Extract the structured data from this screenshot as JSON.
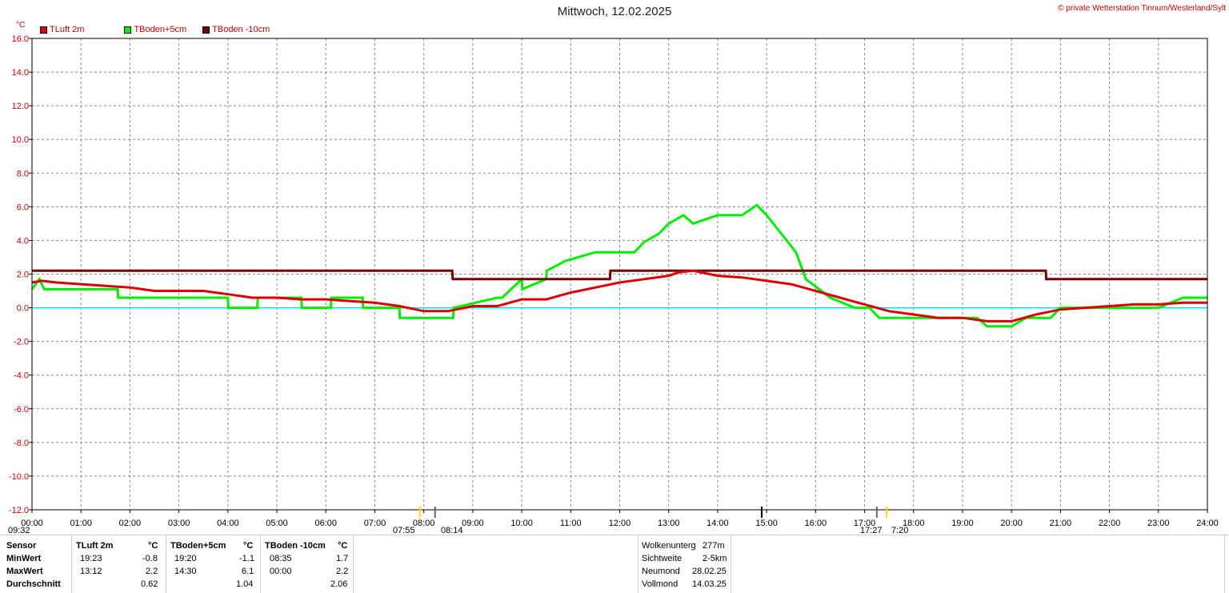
{
  "title": "Mittwoch, 12.02.2025",
  "copyright": "© private Wetterstation Tinnum/Westerland/Sylt",
  "unit": "°C",
  "legend": [
    {
      "label": "TLuft 2m",
      "color": "#dd0000"
    },
    {
      "label": "TBoden+5cm",
      "color": "#00ee00"
    },
    {
      "label": "TBoden -10cm",
      "color": "#7a0000"
    }
  ],
  "sun": {
    "daylight": "09:32",
    "sunrise": "07:55",
    "sunrise2": "08:14",
    "sunset": "17:27",
    "sunset2": "7:20"
  },
  "chart_data": {
    "type": "line",
    "title": "Mittwoch, 12.02.2025",
    "xlabel": "",
    "ylabel": "°C",
    "xlim": [
      0,
      24
    ],
    "ylim": [
      -12,
      16
    ],
    "grid": true,
    "legend_position": "top-left",
    "x_ticks": [
      "00:00",
      "01:00",
      "02:00",
      "03:00",
      "04:00",
      "05:00",
      "06:00",
      "07:00",
      "08:00",
      "09:00",
      "10:00",
      "11:00",
      "12:00",
      "13:00",
      "14:00",
      "15:00",
      "16:00",
      "17:00",
      "18:00",
      "19:00",
      "20:00",
      "21:00",
      "22:00",
      "23:00",
      "24:00"
    ],
    "y_ticks": [
      "16.0",
      "14.0",
      "12.0",
      "10.0",
      "8.0",
      "6.0",
      "4.0",
      "2.0",
      "0.0",
      "-2.0",
      "-4.0",
      "-6.0",
      "-8.0",
      "-10.0",
      "-12.0"
    ],
    "series": [
      {
        "name": "TLuft 2m",
        "color": "#dd0000",
        "x": [
          0,
          0.2,
          0.5,
          1,
          1.5,
          2,
          2.5,
          3,
          3.5,
          4,
          4.5,
          5,
          5.5,
          6,
          6.5,
          7,
          7.5,
          8,
          8.5,
          9,
          9.5,
          10,
          10.5,
          11,
          11.5,
          12,
          12.5,
          13,
          13.2,
          13.5,
          14,
          14.5,
          15,
          15.5,
          16,
          16.5,
          17,
          17.5,
          18,
          18.5,
          19,
          19.5,
          20,
          20.5,
          21,
          21.5,
          22,
          22.5,
          23,
          23.5,
          24
        ],
        "y": [
          1.5,
          1.6,
          1.5,
          1.4,
          1.3,
          1.2,
          1.0,
          1.0,
          1.0,
          0.8,
          0.6,
          0.6,
          0.5,
          0.5,
          0.4,
          0.3,
          0.1,
          -0.2,
          -0.2,
          0.1,
          0.1,
          0.5,
          0.5,
          0.9,
          1.2,
          1.5,
          1.7,
          1.9,
          2.1,
          2.2,
          1.9,
          1.8,
          1.6,
          1.4,
          1.0,
          0.6,
          0.2,
          -0.2,
          -0.4,
          -0.6,
          -0.6,
          -0.8,
          -0.8,
          -0.4,
          -0.1,
          0.0,
          0.1,
          0.2,
          0.2,
          0.3,
          0.3
        ]
      },
      {
        "name": "TBoden+5cm",
        "color": "#00ee00",
        "x": [
          0,
          0.15,
          0.25,
          1.75,
          1.76,
          4.0,
          4.01,
          4.6,
          4.61,
          5.5,
          5.51,
          6.1,
          6.11,
          6.75,
          6.76,
          7.5,
          7.51,
          8.6,
          8.61,
          9.5,
          9.6,
          10.0,
          10.01,
          10.5,
          10.51,
          10.9,
          10.91,
          11.5,
          11.51,
          12.3,
          12.5,
          12.8,
          13.0,
          13.3,
          13.5,
          14.0,
          14.5,
          14.8,
          15.0,
          15.3,
          15.6,
          15.8,
          16.3,
          16.8,
          17.1,
          17.3,
          18.5,
          19.0,
          19.3,
          19.5,
          20.0,
          20.3,
          20.8,
          21.0,
          22.0,
          23.0,
          23.5,
          24
        ],
        "y": [
          1.1,
          1.7,
          1.1,
          1.1,
          0.6,
          0.6,
          0.0,
          0.0,
          0.6,
          0.6,
          0.0,
          0.0,
          0.6,
          0.6,
          0.0,
          0.0,
          -0.6,
          -0.6,
          0.0,
          0.6,
          0.6,
          1.7,
          1.1,
          1.7,
          2.2,
          2.8,
          2.8,
          3.3,
          3.3,
          3.3,
          3.9,
          4.4,
          5.0,
          5.5,
          5.0,
          5.5,
          5.5,
          6.1,
          5.5,
          4.4,
          3.3,
          1.7,
          0.6,
          0.0,
          0.0,
          -0.6,
          -0.6,
          -0.6,
          -0.6,
          -1.1,
          -1.1,
          -0.6,
          -0.6,
          0.0,
          0.0,
          0.0,
          0.6,
          0.6
        ]
      },
      {
        "name": "TBoden -10cm",
        "color": "#7a0000",
        "x": [
          0,
          8.58,
          8.59,
          11.8,
          11.81,
          20.7,
          20.71,
          24
        ],
        "y": [
          2.2,
          2.2,
          1.7,
          1.7,
          2.2,
          2.2,
          1.7,
          1.7
        ]
      },
      {
        "name": "baseline",
        "color": "#00dddd",
        "x": [
          0,
          24
        ],
        "y": [
          0,
          0
        ]
      }
    ]
  },
  "table": {
    "headers": [
      "Sensor",
      "TLuft 2m",
      "°C",
      "TBoden+5cm",
      "°C",
      "TBoden -10cm",
      "°C"
    ],
    "rows": [
      {
        "label": "MinWert",
        "t1": "19:23",
        "v1": "-0.8",
        "t2": "19:20",
        "v2": "-1.1",
        "t3": "08:35",
        "v3": "1.7"
      },
      {
        "label": "MaxWert",
        "t1": "13:12",
        "v1": "2.2",
        "t2": "14:30",
        "v2": "6.1",
        "t3": "00:00",
        "v3": "2.2"
      },
      {
        "label": "Durchschnitt",
        "t1": "",
        "v1": "0.62",
        "t2": "",
        "v2": "1.04",
        "t3": "",
        "v3": "2.06"
      }
    ]
  },
  "info": [
    {
      "label": "Wolkenunterg",
      "value": "277m"
    },
    {
      "label": "Sichtweite",
      "value": "2-5km"
    },
    {
      "label": "Neumond",
      "value": "28.02.25"
    },
    {
      "label": "Vollmond",
      "value": "14.03.25"
    }
  ]
}
